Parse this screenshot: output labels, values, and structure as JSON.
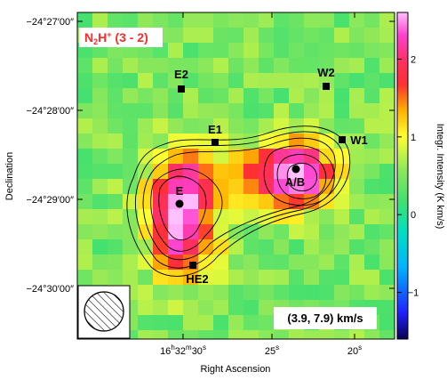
{
  "chart_data": {
    "type": "heatmap",
    "title": "N2H+ (3 - 2)",
    "title_parts": {
      "base": "N",
      "sub": "2",
      "mid": "H",
      "sup": "+",
      "rest": " (3 - 2)"
    },
    "velocity_range": "(3.9, 7.9) km/s",
    "xlabel": "Right Ascension",
    "ylabel": "Declination",
    "colorbar_label": "Integr. Intensity (K km/s)",
    "colorbar_range": [
      -1.6,
      2.6
    ],
    "colorbar_ticks": [
      "2",
      "1",
      "0",
      "−1"
    ],
    "colorbar_tick_values": [
      2,
      1,
      0,
      -1
    ],
    "x_ticks": [
      "16h32m30s",
      "25s",
      "20s"
    ],
    "x_tick_parts": [
      {
        "h": "16",
        "m": "32",
        "s": "30"
      },
      {
        "s": "25"
      },
      {
        "s": "20"
      }
    ],
    "y_ticks": [
      "−24°27′00″",
      "−24°28′00″",
      "−24°29′00″",
      "−24°30′00″"
    ],
    "sources": [
      {
        "name": "E2",
        "marker": "square"
      },
      {
        "name": "W2",
        "marker": "square"
      },
      {
        "name": "E1",
        "marker": "square"
      },
      {
        "name": "W1",
        "marker": "square"
      },
      {
        "name": "E",
        "marker": "circle"
      },
      {
        "name": "A/B",
        "marker": "circle"
      },
      {
        "name": "HE2",
        "marker": "square"
      }
    ],
    "emission_peaks": [
      {
        "name": "E",
        "peak_K_km_s": 2.6
      },
      {
        "name": "A/B",
        "peak_K_km_s": 2.4
      }
    ],
    "contours": "black contours tracing the N2H+ emission around E and A/B",
    "beam_shown": true,
    "colormap": [
      "#0a0050",
      "#2020ff",
      "#00b4ff",
      "#00e0c0",
      "#40e070",
      "#8ee85a",
      "#ffff30",
      "#ffb000",
      "#ff3030",
      "#ff3060",
      "#ff40d0",
      "#ffc0ff"
    ]
  }
}
